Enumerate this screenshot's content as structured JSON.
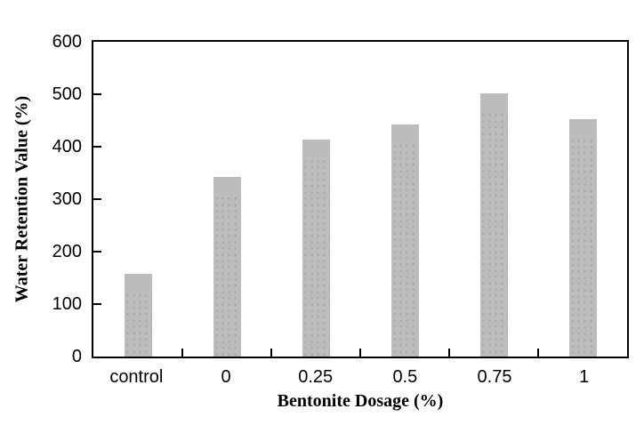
{
  "chart_data": {
    "type": "bar",
    "categories": [
      "control",
      "0",
      "0.25",
      "0.5",
      "0.75",
      "1"
    ],
    "values": [
      158,
      343,
      414,
      442,
      501,
      453
    ],
    "xlabel": "Bentonite Dosage (%)",
    "ylabel": "Water Retention Value (%)",
    "ylim": [
      0,
      600
    ],
    "ytick_step": 100,
    "ytick_labels": [
      "0",
      "100",
      "200",
      "300",
      "400",
      "500",
      "600"
    ],
    "grid": false,
    "legend_position": "none",
    "bar_color": "#bcbcbc",
    "bar_dot_color": "#a6a6a6",
    "axis_color": "#000000",
    "background": "#ffffff"
  }
}
